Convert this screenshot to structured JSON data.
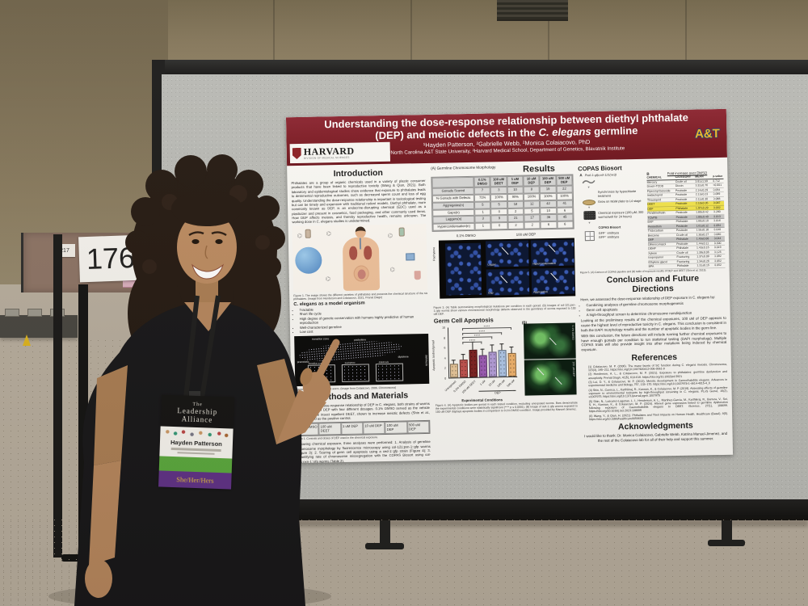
{
  "colors": {
    "banner_maroon": "#7b1a26",
    "highlight_yellow": "#f3e54a",
    "ncat_gold": "#f2b722",
    "board_gray": "#b9bab6"
  },
  "scene": {
    "board_number": "176",
    "left_board_tag": "217"
  },
  "badge": {
    "org_line1": "The",
    "org_line2": "Leadership",
    "org_line3": "Alliance",
    "name": "Hayden Patterson",
    "pronouns": "She/Her/Hers"
  },
  "poster": {
    "banner": {
      "title_pre": "Understanding the dose-response relationship between diethyl phthalate (DEP) and meiotic defects in the ",
      "title_italic": "C. elegans",
      "title_post": " germline",
      "authors": "¹Hayden Patterson, ²Gabrielle Webb, ²Monica Colaiacovo, PhD",
      "affiliations": "¹North Carolina A&T State University, ²Harvard Medical School, Department of Genetics, Blavatnik Institute",
      "harvard": "HARVARD",
      "harvard_sub": "DIVISION OF MEDICAL SCIENCES",
      "ncat": "A&T"
    },
    "intro": {
      "heading": "Introduction",
      "body": "Phthalates are a group of organic chemicals used in a variety of plastic consumer products that have been linked to reproductive toxicity (Wang & Qian, 2021). Both laboratory and epidemiological studies show evidence that exposure to phthalates leads to detrimental reproductive outcomes, such as decreased sperm count and loss of egg quality. Understanding the dose-response relationship is important in toxicological testing but can be timely and expensive with traditional rodent models. Diethyl phthalate, more commonly known as DEP, is an endocrine-disrupting chemical (EDC) used as a plasticizer and present in cosmetics, food packaging, and other commonly used items. How DEP affects meiosis, and thereby reproductive health, remains unknown. The working dose in C. elegans studies is undetermined.",
      "fig1_caption": "Figure 1. The image shows the different varieties of phthalates and presents the chemical structure of the six phthalates. (Image from Henderson and Colaiacovo, 2021, Prenat Diagn)",
      "model_heading": "C. elegans as a model organism",
      "model_bullets": [
        "Tractable",
        "Short life cycle",
        "High degree of genetic conservation with humans highly predictive of human reproduction",
        "Well-characterized germline",
        "Low cost"
      ],
      "fig2_stages": [
        "premeiotic",
        "transition zone",
        "pachytene",
        "diplotene",
        "diakinesis"
      ],
      "fig2_insets": [
        "transition zone",
        "pachytene",
        "diakinesis"
      ],
      "fig2_caption": "Figure 2. Germline of an adult worm. (Image from Colaiacovo, 2006, Chromosoma)"
    },
    "methods": {
      "heading": "Methods and Materials",
      "body1": "To determine the dose-response relationship of DEP in C. elegans, both strains of worms were exposed to DEP with four different dosages. 0.1% DMSO served as the vehicle control and the insect repellent DEET, shown to increase meiotic defects (Shin et al., 2024), served as the positive control.",
      "doses": [
        "0.1% DMSO",
        "100 uM DEET",
        "1 uM DEP",
        "10 uM DEP",
        "100 uM DEP",
        "500 uM DEP"
      ],
      "table_caption": "Table 1. Controls and doses of DEP used in the chemical exposure.",
      "body2": "Following chemical exposure, three analyses were performed: 1. Analysis of germline chromosome morphology by fluorescence microscopy using col-121;pxn-1::gfp worms (Figure 3); 2. Scoring of germ cell apoptosis using a ced-1::gfp strain (Figure 4); 3. Quantifying rate of chromosome missegregation with the COPAS Biosort using col-121;pxn-1::gfp worms (Table 2)."
    },
    "results": {
      "panel_a_label": "(A) Germline Chromosome Morphology",
      "heading": "Results",
      "rows": [
        {
          "label": "",
          "values": [
            "0.1% DMSO",
            "100 uM DEET",
            "1 uM DEP",
            "10 uM DEP",
            "100 uM DEP",
            "500 uM DEP"
          ],
          "cls": "head"
        },
        {
          "label": "Gonads Scored",
          "values": [
            "7",
            "3",
            "10",
            "8",
            "19",
            "22"
          ]
        },
        {
          "label": "% Gonads with Defects",
          "values": [
            "71%",
            "100%",
            "90%",
            "100%",
            "100%",
            "100%"
          ]
        },
        {
          "label": "Aggregates(n)",
          "values": [
            "5",
            "5",
            "18",
            "12",
            "42",
            "41"
          ]
        },
        {
          "label": "Gaps(n)",
          "values": [
            "1",
            "0",
            "2",
            "5",
            "10",
            "6"
          ]
        },
        {
          "label": "Laggers(n)",
          "values": [
            "3",
            "9",
            "21",
            "17",
            "36",
            "45"
          ]
        },
        {
          "label": "Hypercondensation(n)",
          "values": [
            "1",
            "0",
            "2",
            "2",
            "6",
            "6"
          ]
        }
      ],
      "micro_left_label": "0.1% DMSO",
      "micro_right_label": "100 uM DEP",
      "micro_side_label": "Pachytene",
      "micro_cells": [
        "Lagger",
        "Hypercondensation",
        "Gap",
        "Aggregation"
      ],
      "fig3_caption": "Figure 3. (A) Table summarizing morphological mutations per condition in each gonad. (B) Images of col-121;pxn-1::gfp worms show various chromosomal morphology defects observed in the germlines of worms exposed to 100 uM DEP."
    },
    "apoptosis": {
      "heading": "Germ Cell Apoptosis",
      "panel_b_label": "(B)",
      "gfp_labels": [
        "0.1% DMSO",
        "100 uM DEP"
      ],
      "fig4_caption": "Figure 4. (A) Apoptotic bodies per gonad in each tested condition, excluding unexposed worms. Bars demonstrate the experimental conditions were statistically significant (**** p ≤ 0.0001). (B) Image of ced-1::gfp worms exposed to 100 uM DEP displays apoptotic bodies in comparison to 0.1% DMSO condition. Image provided by Manuel-Jimenez."
    },
    "copas": {
      "heading": "COPAS Biosort",
      "a_label": "A",
      "strain": "Pxol-1::gfp;col-121(nx3)",
      "steps": [
        "Synchronize by hypochlorite treatment",
        "Grow on NGM plate to L4 stage",
        "Chemical exposure (100 μM; 300 worms/well for 24 hours)",
        "COPAS Biosort"
      ],
      "outputs": [
        "GFP⁻ embryos",
        "GFP⁺ embryos"
      ],
      "b_label": "B",
      "table_title": "Fold increase over DMSO",
      "rows": [
        {
          "chem": "CHEMICAL",
          "cat": "CATEGORY",
          "mean": "MEAN",
          "p": "p-value",
          "cls": "head"
        },
        {
          "chem": "Mercury",
          "cat": "Crude oil",
          "mean": "3.81±1.59",
          "p": "0.712"
        },
        {
          "chem": "Dioxin-TCDD",
          "cat": "Dioxin",
          "mean": "3.32±0.76",
          "p": "<0.001"
        },
        {
          "chem": "Piperonyl butoxide",
          "cat": "Pesticide",
          "mean": "2.14±0.29",
          "p": "0.094"
        },
        {
          "chem": "Imidacloprid",
          "cat": "Pesticide",
          "mean": "2.13±0.23",
          "p": "0.099"
        },
        {
          "chem": "Thiacloprid",
          "cat": "Pesticide",
          "mean": "2.11±0.30",
          "p": "0.088"
        },
        {
          "chem": "DEET",
          "cat": "Pesticide",
          "mean": "2.10±0.35",
          "p": "0.087",
          "cls": "hl"
        },
        {
          "chem": "DEP",
          "cat": "Phthalate",
          "mean": "1.97±0.29",
          "p": "0.002",
          "cls": "hl"
        },
        {
          "chem": "Pendimethalin",
          "cat": "Pesticide",
          "mean": "1.80±0.42",
          "p": "0.280"
        },
        {
          "chem": "TCMTB",
          "cat": "Pesticide",
          "mean": "1.80±0.40",
          "p": "0.013",
          "cls": "shade"
        },
        {
          "chem": "BAP",
          "cat": "Phthalate",
          "mean": "1.60±0.10",
          "p": "0.016"
        },
        {
          "chem": "Permethrin",
          "cat": "Pesticide",
          "mean": "1.61±0.12",
          "p": "0.094",
          "cls": "shade"
        },
        {
          "chem": "Triclocarban",
          "cat": "Pesticide",
          "mean": "1.55±0.18",
          "p": "0.040"
        },
        {
          "chem": "Benzene",
          "cat": "Crude oil",
          "mean": "1.50±0.27",
          "p": "0.080"
        },
        {
          "chem": "DBP",
          "cat": "Phthalate",
          "mean": "1.49±0.08",
          "p": "0.044",
          "cls": "shade"
        },
        {
          "chem": "Difenoconazol",
          "cat": "Pesticide",
          "mean": "1.44±0.11",
          "p": "0.300"
        },
        {
          "chem": "DEHP",
          "cat": "Phthalate",
          "mean": "1.43±0.16",
          "p": "0.019"
        },
        {
          "chem": "Xylene",
          "cat": "Crude oil",
          "mean": "1.39±0.06",
          "p": "0.125"
        },
        {
          "chem": "Isopropanol",
          "cat": "Fracturing",
          "mean": "1.37±0.09",
          "p": "0.092"
        },
        {
          "chem": "Ethylene glycol",
          "cat": "Fracturing",
          "mean": "1.34±0.26",
          "p": "0.052"
        },
        {
          "chem": "BPA",
          "cat": "Phthalate",
          "mean": "1.31±0.15",
          "p": "0.052"
        }
      ],
      "fig5_caption": "Figure 5. (A) Cartoon of COPAS pipeline and (B) table of exposure results of DEP and DEET (Shin et al, 2019)."
    },
    "conclusion": {
      "heading": "Conclusion and Future Directions",
      "intro": "Here, we assessed the dose-response relationship of DEP exposure in C. elegans by:",
      "bullets": [
        "Combining analyses of germline chromosome morphogenesis",
        "Germ cell apoptosis",
        "A high-throughput screen to determine chromosome nondisjunction"
      ],
      "para2": "Looking at the preliminary results of the chemical exposures, 100 uM of DEP appears to cause the highest level of reproductive toxicity in C. elegans. This conclusion is consistent in both the DAPI morphology results and the number of apoptotic bodies in the germ line.",
      "para3": "With this conclusion, the future directions will include running further chemical exposures to have enough gonads per condition to run statistical testing (DAPI morphology). Multiple COPAS trials will also provide insight into other mutations being induced by chemical exposure."
    },
    "references": {
      "heading": "References",
      "items": [
        "(1) Colaiacovo, M. P. (2006). The many facets of SC function during C. elegans meiosis. Chromosoma, 115(3), 195–211. https://doi.org/10.1007/s00412-006-0061-9",
        "(2) Henderson, A. L., & Colaiacovo, M. P. (2021). Exposure to phthalates: germline dysfunction and aneuploidy. Prenat Diagn, 41(5), 610-619. https://doi.org/10.1002/pd.5921",
        "(3) Lui, D. Y., & Colaiacovo, M. P. (2013). Meiotic development in Caenorhabditis elegans. Advances in experimental medicine and biology, 757, 133–170. https://doi.org/10.1007/978-1-4614-4015-4_6",
        "(4) Shin, N., Cuenca, L., Karthikraj, R., Kannan, K., & Colaiacovo, M. P. (2019). Assessing effects of germline exposure to environmental toxicants by high-throughput screening in C. elegans. PLoS Genet, 15(2), e1007975. https://doi.org/10.1371/journal.pgen.1007975",
        "(5) Shin, N., Lascarez-Lagunas, L. I., Henderson, A. L., Martinez-Garcia, M., Karthikraj, R., Barrera, V., Sui, S. H., Kannan, K., & Colaiacovo, M. P. (2024). Altered gene expression linked to germline dysfunction following exposure of Caenorhabditis elegans to DEET. iScience, 27(1), 108699. https://doi.org/10.1016/j.isci.2023.108699",
        "(6) Wang, Y., & Qian, H. (2021). Phthalates and Their Impacts on Human Health. Healthcare (Basel), 9(5). https://doi.org/10.3390/healthcare9050603"
      ]
    },
    "acknowledgments": {
      "heading": "Acknowledgments",
      "body": "I would like to thank: Dr. Monica Colaiacovo, Gabrielle Webb, Katrina Manuel-Jimenez, and the rest of the Colaiacovo lab for all of their help and support this summer."
    }
  },
  "chart_data": {
    "type": "bar",
    "title": "Germ Cell Apoptosis",
    "categories": [
      "Unexposed",
      "0.1% DMSO",
      "100 uM DEET",
      "1 uM",
      "10 uM",
      "100 uM",
      "500 uM"
    ],
    "values": [
      2.8,
      3.5,
      5.5,
      4.4,
      5.0,
      5.4,
      4.7
    ],
    "errors": [
      0.8,
      1.2,
      1.6,
      1.3,
      1.4,
      1.3,
      1.2
    ],
    "colors": [
      "#e8c79a",
      "#c0504d",
      "#7b1f1f",
      "#9b59b6",
      "#b39ddb",
      "#aec6e8",
      "#f0b26b"
    ],
    "xlabel": "Experimental Conditions",
    "ylabel": "Apoptotic bodies/gonad",
    "ylim": [
      0,
      10
    ],
    "yticks": [
      0,
      2,
      4,
      6,
      8,
      10
    ],
    "group_label": "DEP",
    "sig_annotations": [
      "****",
      "****",
      "****",
      "****"
    ],
    "legend": "none",
    "grid": false
  }
}
